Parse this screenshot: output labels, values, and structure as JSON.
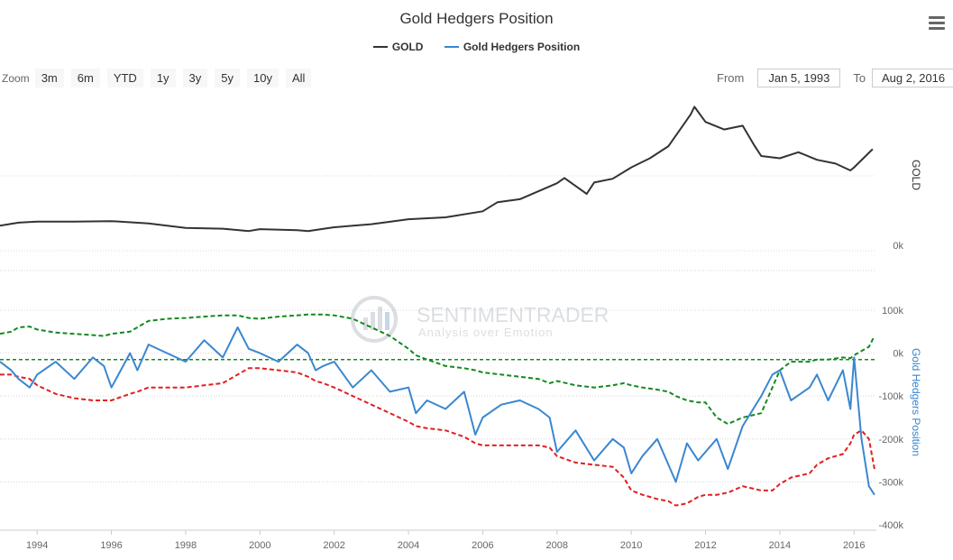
{
  "chart": {
    "title": "Gold Hedgers Position",
    "legend": [
      {
        "name": "GOLD",
        "color": "#333333"
      },
      {
        "name": "Gold Hedgers Position",
        "color": "#3a87d0"
      }
    ],
    "zoom_label": "Zoom",
    "zoom_buttons": [
      "3m",
      "6m",
      "YTD",
      "1y",
      "3y",
      "5y",
      "10y",
      "All"
    ],
    "range": {
      "from_label": "From",
      "from_value": "Jan 5, 1993",
      "to_label": "To",
      "to_value": "Aug 2, 2016"
    },
    "menu_icon": "hamburger-menu-icon",
    "watermark": {
      "brand": "SENTIMENTRADER",
      "tagline": "Analysis over Emotion"
    }
  },
  "chart_data": [
    {
      "type": "line",
      "ylabel": "GOLD",
      "ytick_labels": [
        "0k"
      ],
      "x": [
        1993.0,
        1993.5,
        1994,
        1995,
        1996,
        1997,
        1997.5,
        1998,
        1999,
        1999.7,
        2000,
        2001,
        2001.3,
        2002,
        2003,
        2004,
        2005,
        2006,
        2006.4,
        2007,
        2008,
        2008.2,
        2008.8,
        2009,
        2009.5,
        2010,
        2010.5,
        2011,
        2011.6,
        2011.7,
        2012,
        2012.5,
        2013,
        2013.3,
        2013.5,
        2014,
        2014.5,
        2015,
        2015.5,
        2015.9,
        2016,
        2016.5
      ],
      "values": [
        330,
        370,
        385,
        385,
        390,
        360,
        330,
        300,
        290,
        260,
        285,
        270,
        260,
        310,
        350,
        415,
        440,
        520,
        640,
        680,
        890,
        960,
        750,
        900,
        950,
        1100,
        1220,
        1380,
        1800,
        1900,
        1700,
        1600,
        1650,
        1400,
        1250,
        1220,
        1300,
        1200,
        1150,
        1060,
        1100,
        1340
      ],
      "series": [
        {
          "name": "GOLD"
        }
      ]
    },
    {
      "type": "line",
      "ylabel": "Gold Hedgers Position",
      "ytick_labels": [
        "100k",
        "0k",
        "-100k",
        "-200k",
        "-300k",
        "-400k"
      ],
      "ylim": [
        -400000,
        100000
      ],
      "x_ticks": [
        "1994",
        "1996",
        "1998",
        "2000",
        "2002",
        "2004",
        "2006",
        "2008",
        "2010",
        "2012",
        "2014",
        "2016"
      ],
      "x": [
        1993.0,
        1993.3,
        1993.5,
        1993.8,
        1994,
        1994.5,
        1995,
        1995.5,
        1995.8,
        1996,
        1996.5,
        1996.7,
        1997,
        1997.5,
        1998,
        1998.5,
        1999,
        1999.4,
        1999.7,
        2000,
        2000.5,
        2001,
        2001.3,
        2001.5,
        2001.7,
        2002,
        2002.5,
        2003,
        2003.5,
        2004,
        2004.2,
        2004.5,
        2005,
        2005.5,
        2005.8,
        2006,
        2006.5,
        2007,
        2007.5,
        2007.8,
        2008,
        2008.5,
        2009,
        2009.5,
        2009.8,
        2010,
        2010.3,
        2010.7,
        2011,
        2011.2,
        2011.5,
        2011.8,
        2012,
        2012.3,
        2012.6,
        2013,
        2013.5,
        2013.8,
        2014,
        2014.3,
        2014.8,
        2015,
        2015.3,
        2015.7,
        2015.9,
        2016,
        2016.2,
        2016.4,
        2016.55
      ],
      "series": [
        {
          "name": "Gold Hedgers Position",
          "values": [
            -20000,
            -40000,
            -60000,
            -80000,
            -50000,
            -20000,
            -60000,
            -10000,
            -30000,
            -80000,
            0,
            -40000,
            20000,
            0,
            -20000,
            30000,
            -10000,
            60000,
            10000,
            0,
            -20000,
            20000,
            0,
            -40000,
            -30000,
            -20000,
            -80000,
            -40000,
            -90000,
            -80000,
            -140000,
            -110000,
            -130000,
            -90000,
            -190000,
            -150000,
            -120000,
            -110000,
            -130000,
            -150000,
            -230000,
            -180000,
            -250000,
            -200000,
            -220000,
            -280000,
            -240000,
            -200000,
            -260000,
            -300000,
            -210000,
            -250000,
            -230000,
            -200000,
            -270000,
            -170000,
            -100000,
            -50000,
            -40000,
            -110000,
            -80000,
            -50000,
            -110000,
            -40000,
            -130000,
            -10000,
            -200000,
            -310000,
            -330000
          ]
        },
        {
          "name": "",
          "values": [
            45000,
            50000,
            60000,
            62000,
            55000,
            48000,
            45000,
            42000,
            40000,
            45000,
            50000,
            60000,
            75000,
            80000,
            82000,
            85000,
            88000,
            88000,
            82000,
            80000,
            85000,
            88000,
            90000,
            90000,
            90000,
            88000,
            80000,
            60000,
            40000,
            10000,
            -5000,
            -15000,
            -30000,
            -35000,
            -40000,
            -45000,
            -50000,
            -55000,
            -60000,
            -70000,
            -65000,
            -75000,
            -80000,
            -75000,
            -70000,
            -75000,
            -80000,
            -85000,
            -90000,
            -100000,
            -110000,
            -115000,
            -115000,
            -150000,
            -165000,
            -150000,
            -140000,
            -80000,
            -40000,
            -20000,
            -20000,
            -15000,
            -15000,
            -10000,
            -12000,
            -5000,
            5000,
            15000,
            40000
          ]
        },
        {
          "name": "",
          "values": [
            -50000,
            -50000,
            -55000,
            -60000,
            -75000,
            -95000,
            -105000,
            -110000,
            -110000,
            -110000,
            -95000,
            -90000,
            -80000,
            -80000,
            -80000,
            -75000,
            -70000,
            -50000,
            -35000,
            -35000,
            -40000,
            -45000,
            -55000,
            -65000,
            -70000,
            -80000,
            -100000,
            -120000,
            -140000,
            -160000,
            -170000,
            -175000,
            -180000,
            -195000,
            -210000,
            -215000,
            -215000,
            -215000,
            -215000,
            -220000,
            -240000,
            -255000,
            -260000,
            -265000,
            -290000,
            -320000,
            -330000,
            -340000,
            -345000,
            -355000,
            -350000,
            -335000,
            -330000,
            -330000,
            -325000,
            -310000,
            -320000,
            -320000,
            -305000,
            -290000,
            -280000,
            -260000,
            -245000,
            -235000,
            -210000,
            -190000,
            -180000,
            -200000,
            -270000
          ]
        }
      ]
    }
  ]
}
